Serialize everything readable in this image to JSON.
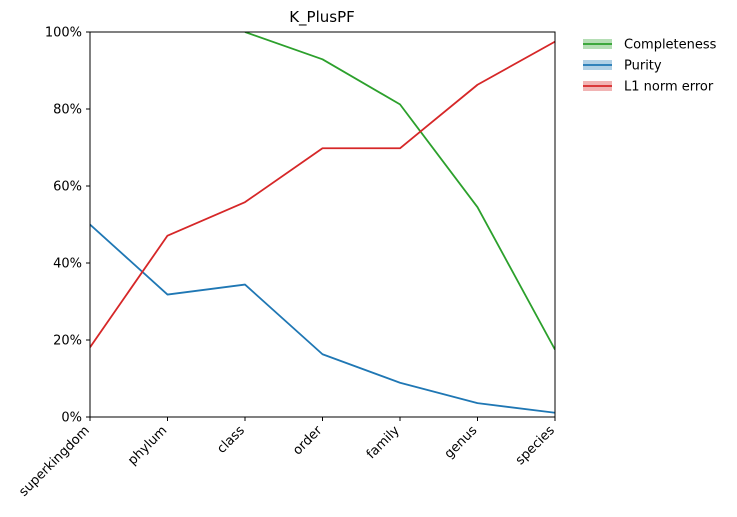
{
  "chart_data": {
    "type": "line",
    "title": "K_PlusPF",
    "xlabel": "",
    "ylabel": "",
    "categories": [
      "superkingdom",
      "phylum",
      "class",
      "order",
      "family",
      "genus",
      "species"
    ],
    "ylim": [
      0,
      100
    ],
    "yticks": [
      "0%",
      "20%",
      "40%",
      "60%",
      "80%",
      "100%"
    ],
    "legend_position": "outside-top-right",
    "grid": false,
    "series": [
      {
        "name": "Completeness",
        "color": "#2ca02c",
        "values": [
          null,
          null,
          100,
          92.9,
          81.2,
          54.5,
          17.5
        ]
      },
      {
        "name": "Purity",
        "color": "#1f77b4",
        "values": [
          50,
          31.8,
          34.4,
          16.3,
          8.9,
          3.6,
          1.1
        ]
      },
      {
        "name": "L1 norm error",
        "color": "#d62728",
        "values": [
          18.1,
          47.1,
          55.8,
          69.8,
          69.8,
          86.3,
          97.5
        ]
      }
    ]
  }
}
